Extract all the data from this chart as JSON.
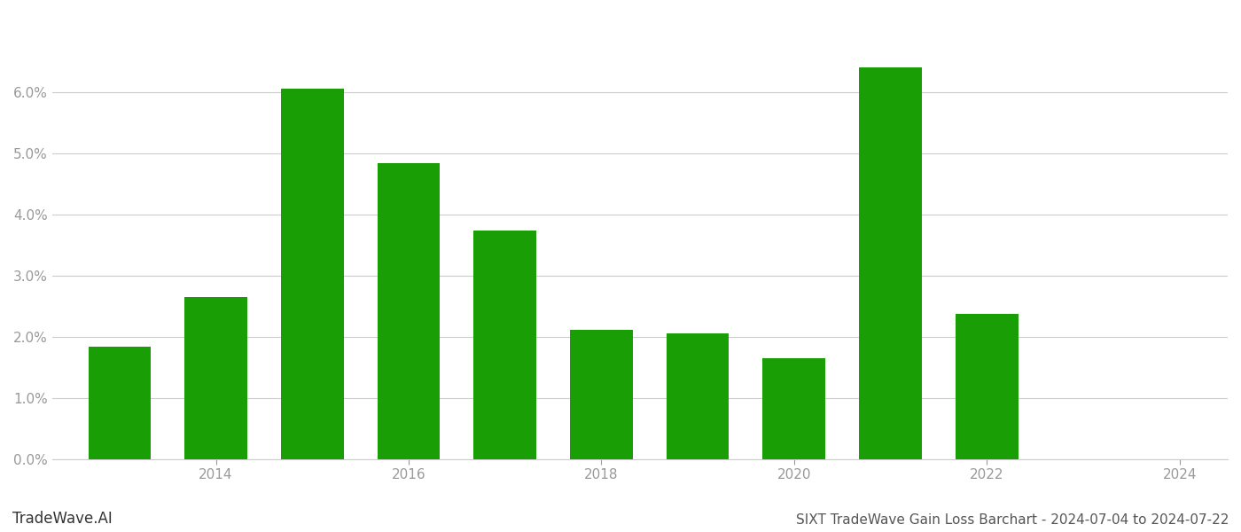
{
  "years": [
    2013,
    2014,
    2015,
    2016,
    2017,
    2018,
    2019,
    2020,
    2021,
    2022
  ],
  "values": [
    0.0184,
    0.0265,
    0.0605,
    0.0483,
    0.0373,
    0.0211,
    0.0205,
    0.0165,
    0.064,
    0.0237
  ],
  "bar_color": "#1a9e06",
  "background_color": "#ffffff",
  "title": "SIXT TradeWave Gain Loss Barchart - 2024-07-04 to 2024-07-22",
  "watermark": "TradeWave.AI",
  "ylim": [
    0,
    0.072
  ],
  "yticks": [
    0.0,
    0.01,
    0.02,
    0.03,
    0.04,
    0.05,
    0.06
  ],
  "xticks": [
    2014,
    2016,
    2018,
    2020,
    2022,
    2024
  ],
  "xlim": [
    2012.3,
    2024.5
  ],
  "grid_color": "#cccccc",
  "tick_color": "#999999",
  "title_color": "#555555",
  "watermark_color": "#333333",
  "title_fontsize": 11,
  "watermark_fontsize": 12,
  "bar_width": 0.65
}
